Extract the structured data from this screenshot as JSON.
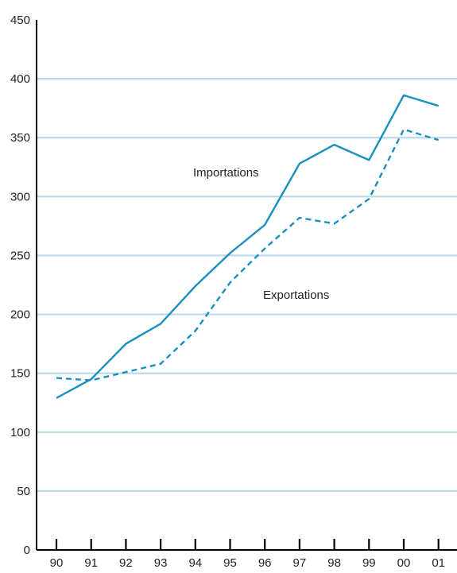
{
  "chart_data": {
    "type": "line",
    "title": "",
    "xlabel": "",
    "ylabel": "",
    "categories": [
      "90",
      "91",
      "92",
      "93",
      "94",
      "95",
      "96",
      "97",
      "98",
      "99",
      "00",
      "01"
    ],
    "ylim": [
      0,
      450
    ],
    "yticks": [
      0,
      50,
      100,
      150,
      200,
      250,
      300,
      350,
      400,
      450
    ],
    "grid": "horizontal",
    "colors": {
      "line": "#1a8fc0",
      "grid": "#bcd9ea",
      "axis": "#000000"
    },
    "series": [
      {
        "name": "Importations",
        "style": "solid",
        "values": [
          129,
          145,
          175,
          192,
          224,
          252,
          276,
          328,
          344,
          331,
          386,
          377
        ]
      },
      {
        "name": "Exportations",
        "style": "dashed",
        "values": [
          146,
          144,
          151,
          158,
          186,
          227,
          256,
          282,
          277,
          298,
          357,
          348
        ]
      }
    ]
  }
}
